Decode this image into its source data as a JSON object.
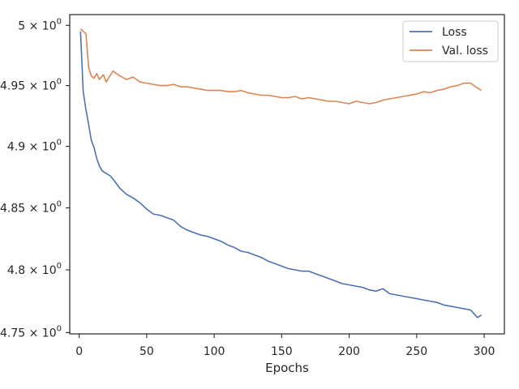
{
  "chart_data": {
    "type": "line",
    "xlabel": "Epochs",
    "ylabel": "",
    "xlim": [
      -7,
      315
    ],
    "ylim": [
      4.749,
      5.009
    ],
    "y_scale": "log",
    "grid": false,
    "legend_placement": "top-right",
    "x_ticks": [
      {
        "value": 0,
        "label": "0"
      },
      {
        "value": 50,
        "label": "50"
      },
      {
        "value": 100,
        "label": "100"
      },
      {
        "value": 150,
        "label": "150"
      },
      {
        "value": 200,
        "label": "200"
      },
      {
        "value": 250,
        "label": "250"
      },
      {
        "value": 300,
        "label": "300"
      }
    ],
    "y_ticks": [
      {
        "value": 4.75,
        "mantissa": "4.75",
        "times": " × 10",
        "exp": "0"
      },
      {
        "value": 4.8,
        "mantissa": "4.8",
        "times": " × 10",
        "exp": "0"
      },
      {
        "value": 4.85,
        "mantissa": "4.85",
        "times": " × 10",
        "exp": "0"
      },
      {
        "value": 4.9,
        "mantissa": "4.9",
        "times": " × 10",
        "exp": "0"
      },
      {
        "value": 4.95,
        "mantissa": "4.95",
        "times": " × 10",
        "exp": "0"
      },
      {
        "value": 5.0,
        "mantissa": "5",
        "times": " × 10",
        "exp": "0"
      }
    ],
    "series": [
      {
        "name": "Loss",
        "color": "#4c72b0",
        "x": [
          1,
          3,
          5,
          7,
          9,
          11,
          13,
          15,
          17,
          20,
          23,
          26,
          30,
          35,
          40,
          45,
          50,
          55,
          60,
          65,
          70,
          75,
          80,
          85,
          90,
          95,
          100,
          105,
          110,
          115,
          120,
          125,
          130,
          135,
          140,
          145,
          150,
          155,
          160,
          165,
          170,
          175,
          180,
          185,
          190,
          195,
          200,
          205,
          210,
          215,
          220,
          225,
          230,
          235,
          240,
          245,
          250,
          255,
          260,
          265,
          270,
          275,
          280,
          285,
          290,
          295,
          298
        ],
        "y": [
          4.995,
          4.945,
          4.93,
          4.918,
          4.905,
          4.899,
          4.89,
          4.884,
          4.88,
          4.878,
          4.876,
          4.872,
          4.866,
          4.861,
          4.858,
          4.854,
          4.849,
          4.845,
          4.844,
          4.842,
          4.84,
          4.835,
          4.832,
          4.83,
          4.828,
          4.827,
          4.825,
          4.823,
          4.82,
          4.818,
          4.815,
          4.814,
          4.812,
          4.81,
          4.807,
          4.805,
          4.803,
          4.801,
          4.8,
          4.799,
          4.799,
          4.797,
          4.795,
          4.793,
          4.791,
          4.789,
          4.788,
          4.787,
          4.786,
          4.784,
          4.783,
          4.785,
          4.781,
          4.78,
          4.779,
          4.778,
          4.777,
          4.776,
          4.775,
          4.774,
          4.772,
          4.771,
          4.77,
          4.769,
          4.768,
          4.762,
          4.764
        ]
      },
      {
        "name": "Val. loss",
        "color": "#dd8452",
        "x": [
          1,
          3,
          5,
          7,
          9,
          11,
          13,
          15,
          18,
          20,
          25,
          30,
          35,
          40,
          45,
          50,
          55,
          60,
          65,
          70,
          75,
          80,
          85,
          90,
          95,
          100,
          105,
          110,
          115,
          120,
          125,
          130,
          135,
          140,
          145,
          150,
          155,
          160,
          165,
          170,
          175,
          180,
          185,
          190,
          195,
          200,
          205,
          210,
          215,
          220,
          225,
          230,
          235,
          240,
          245,
          250,
          255,
          260,
          265,
          270,
          275,
          280,
          285,
          290,
          295,
          298
        ],
        "y": [
          4.997,
          4.995,
          4.993,
          4.965,
          4.958,
          4.956,
          4.96,
          4.955,
          4.959,
          4.953,
          4.962,
          4.958,
          4.955,
          4.957,
          4.953,
          4.952,
          4.951,
          4.95,
          4.95,
          4.951,
          4.949,
          4.949,
          4.948,
          4.947,
          4.946,
          4.946,
          4.946,
          4.945,
          4.945,
          4.946,
          4.944,
          4.943,
          4.942,
          4.942,
          4.941,
          4.94,
          4.94,
          4.941,
          4.939,
          4.94,
          4.939,
          4.938,
          4.937,
          4.937,
          4.936,
          4.935,
          4.937,
          4.936,
          4.935,
          4.936,
          4.938,
          4.939,
          4.94,
          4.941,
          4.942,
          4.943,
          4.945,
          4.944,
          4.946,
          4.947,
          4.949,
          4.95,
          4.952,
          4.952,
          4.948,
          4.946
        ]
      }
    ]
  }
}
